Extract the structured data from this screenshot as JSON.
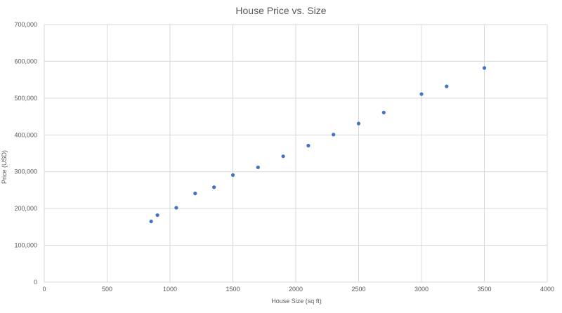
{
  "chart_data": {
    "type": "scatter",
    "title": "House Price vs. Size",
    "xlabel": "House Size (sq ft)",
    "ylabel": "Price (USD)",
    "xlim": [
      0,
      4000
    ],
    "ylim": [
      0,
      700000
    ],
    "x_ticks": [
      0,
      500,
      1000,
      1500,
      2000,
      2500,
      3000,
      3500,
      4000
    ],
    "y_ticks": [
      0,
      100000,
      200000,
      300000,
      400000,
      500000,
      600000,
      700000
    ],
    "x_tick_labels": [
      "0",
      "500",
      "1000",
      "1500",
      "2000",
      "2500",
      "3000",
      "3500",
      "4000"
    ],
    "y_tick_labels": [
      "0",
      "100,000",
      "200,000",
      "300,000",
      "400,000",
      "500,000",
      "600,000",
      "700,000"
    ],
    "grid": true,
    "legend": "none",
    "colors": {
      "point": "#4472C4",
      "grid": "#d9d9d9",
      "text": "#595959"
    },
    "series": [
      {
        "x": [
          850,
          900,
          1050,
          1200,
          1350,
          1500,
          1700,
          1900,
          2100,
          2300,
          2500,
          2700,
          3000,
          3200,
          3500
        ],
        "y": [
          165000,
          182000,
          202000,
          241000,
          258000,
          291000,
          312000,
          342000,
          371000,
          401000,
          431000,
          461000,
          511000,
          532000,
          582000
        ]
      }
    ]
  }
}
